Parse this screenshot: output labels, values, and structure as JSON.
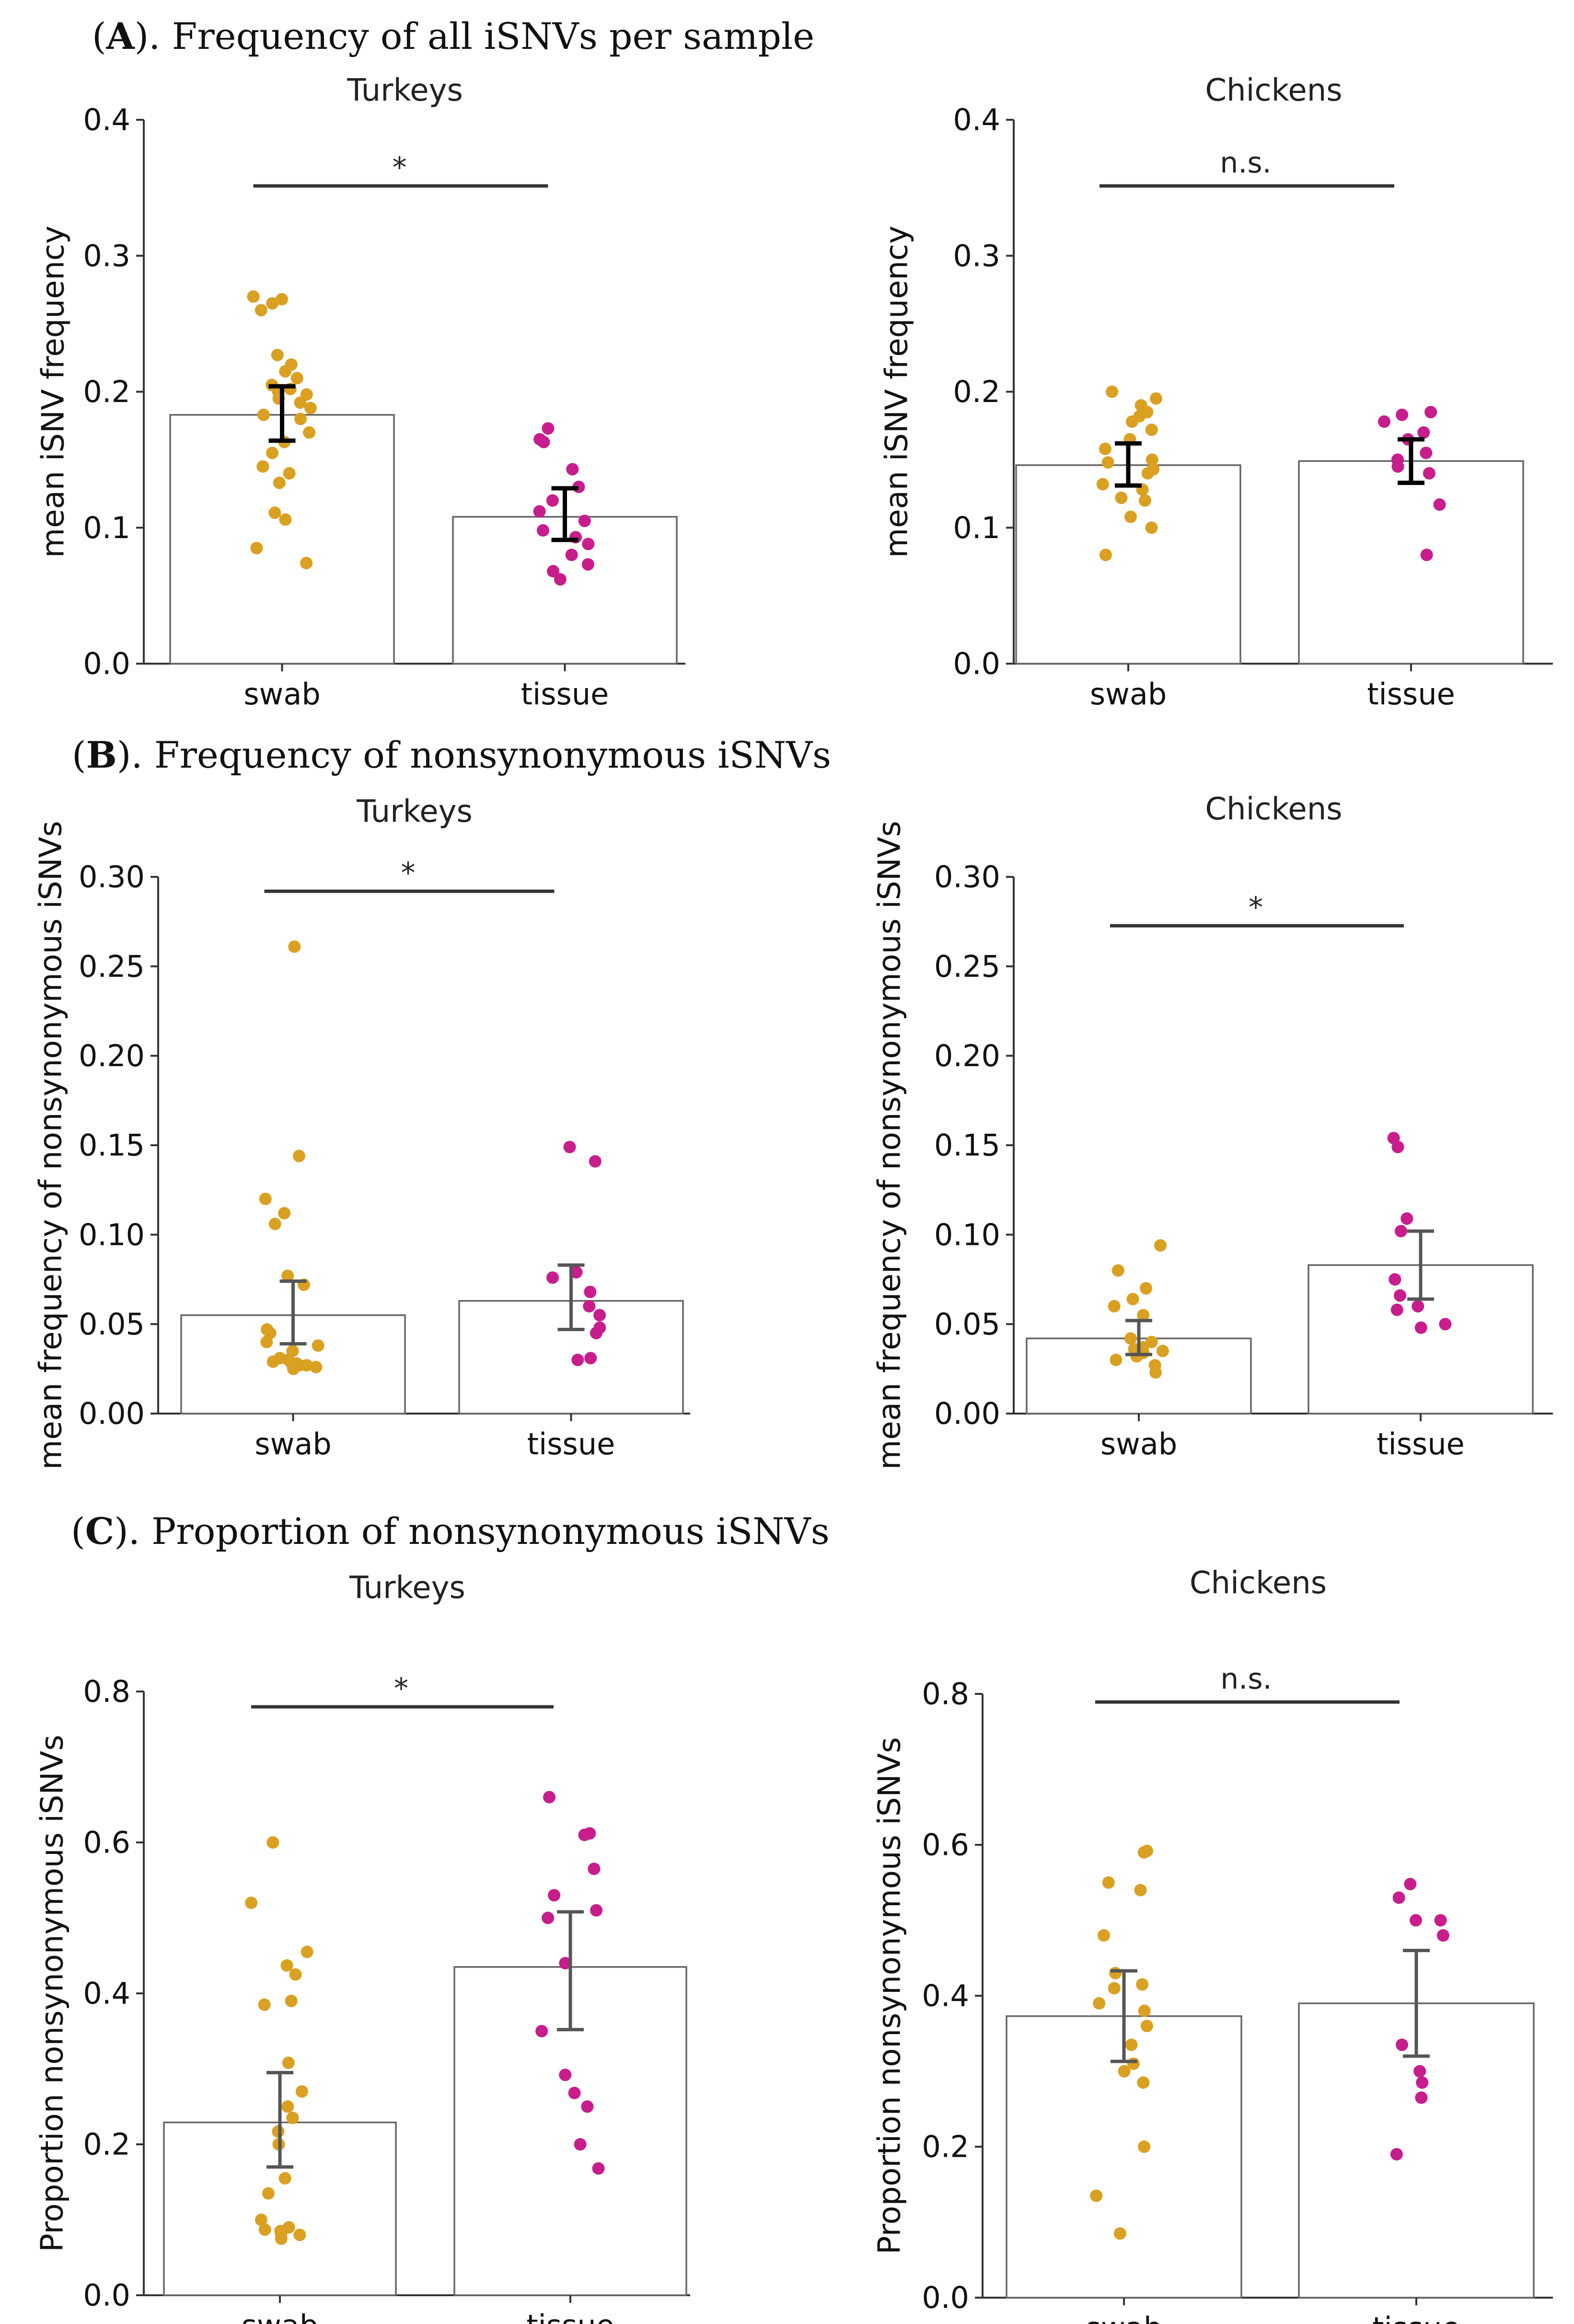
{
  "sections": [
    {
      "letter": "A",
      "rest": "). Frequency of all iSNVs per sample"
    },
    {
      "letter": "B",
      "rest": "). Frequency of nonsynonymous iSNVs"
    },
    {
      "letter": "C",
      "rest": "). Proportion of nonsynonymous iSNVs"
    }
  ],
  "colors": {
    "swab": "#DAA021",
    "tissue": "#C81D8C",
    "bar_edge": "#666666",
    "errbar_A": "#000000",
    "errbar_BC": "#555555"
  },
  "chart_data": [
    {
      "type": "bar",
      "section": "A",
      "title": "Turkeys",
      "ylabel": "mean iSNV frequency",
      "categories": [
        "swab",
        "tissue"
      ],
      "values": [
        0.183,
        0.108
      ],
      "errors": [
        [
          0.164,
          0.204
        ],
        [
          0.091,
          0.129
        ]
      ],
      "ylim": [
        0,
        0.4
      ],
      "yticks": [
        "0.0",
        "0.1",
        "0.2",
        "0.3",
        "0.4"
      ],
      "significance": "*",
      "points": {
        "swab": [
          0.074,
          0.085,
          0.106,
          0.111,
          0.133,
          0.14,
          0.145,
          0.155,
          0.163,
          0.17,
          0.18,
          0.183,
          0.188,
          0.192,
          0.195,
          0.198,
          0.2,
          0.202,
          0.205,
          0.21,
          0.215,
          0.22,
          0.227,
          0.26,
          0.265,
          0.268,
          0.27
        ],
        "tissue": [
          0.062,
          0.068,
          0.073,
          0.08,
          0.088,
          0.093,
          0.098,
          0.105,
          0.112,
          0.12,
          0.13,
          0.143,
          0.163,
          0.165,
          0.173
        ]
      }
    },
    {
      "type": "bar",
      "section": "A",
      "title": "Chickens",
      "ylabel": "mean iSNV frequency",
      "categories": [
        "swab",
        "tissue"
      ],
      "values": [
        0.146,
        0.149
      ],
      "errors": [
        [
          0.131,
          0.162
        ],
        [
          0.133,
          0.165
        ]
      ],
      "ylim": [
        0,
        0.4
      ],
      "yticks": [
        "0.0",
        "0.1",
        "0.2",
        "0.3",
        "0.4"
      ],
      "significance": "n.s.",
      "points": {
        "swab": [
          0.08,
          0.1,
          0.108,
          0.12,
          0.122,
          0.128,
          0.132,
          0.14,
          0.143,
          0.148,
          0.15,
          0.158,
          0.165,
          0.172,
          0.178,
          0.182,
          0.185,
          0.19,
          0.195,
          0.2
        ],
        "tissue": [
          0.08,
          0.117,
          0.14,
          0.145,
          0.15,
          0.155,
          0.165,
          0.17,
          0.178,
          0.183,
          0.185
        ]
      }
    },
    {
      "type": "bar",
      "section": "B",
      "title": "Turkeys",
      "ylabel": "mean frequency of nonsynonymous iSNVs",
      "categories": [
        "swab",
        "tissue"
      ],
      "values": [
        0.055,
        0.063
      ],
      "errors": [
        [
          0.039,
          0.074
        ],
        [
          0.047,
          0.083
        ]
      ],
      "ylim": [
        0,
        0.3
      ],
      "yticks": [
        "0.00",
        "0.05",
        "0.10",
        "0.15",
        "0.20",
        "0.25",
        "0.30"
      ],
      "significance": "*",
      "points": {
        "swab": [
          0.025,
          0.026,
          0.027,
          0.027,
          0.028,
          0.028,
          0.029,
          0.03,
          0.031,
          0.035,
          0.038,
          0.04,
          0.045,
          0.047,
          0.072,
          0.077,
          0.106,
          0.112,
          0.12,
          0.144,
          0.261
        ],
        "tissue": [
          0.03,
          0.031,
          0.045,
          0.048,
          0.055,
          0.06,
          0.068,
          0.076,
          0.079,
          0.141,
          0.149
        ]
      }
    },
    {
      "type": "bar",
      "section": "B",
      "title": "Chickens",
      "ylabel": "mean frequency of nonsynonymous iSNVs",
      "categories": [
        "swab",
        "tissue"
      ],
      "values": [
        0.042,
        0.083
      ],
      "errors": [
        [
          0.033,
          0.052
        ],
        [
          0.064,
          0.102
        ]
      ],
      "ylim": [
        0,
        0.3
      ],
      "yticks": [
        "0.00",
        "0.05",
        "0.10",
        "0.15",
        "0.20",
        "0.25",
        "0.30"
      ],
      "significance": "*",
      "points": {
        "swab": [
          0.023,
          0.027,
          0.03,
          0.032,
          0.034,
          0.035,
          0.036,
          0.037,
          0.04,
          0.042,
          0.055,
          0.06,
          0.064,
          0.07,
          0.08,
          0.094
        ],
        "tissue": [
          0.048,
          0.05,
          0.058,
          0.06,
          0.066,
          0.075,
          0.102,
          0.109,
          0.149,
          0.154
        ]
      }
    },
    {
      "type": "bar",
      "section": "C",
      "title": "Turkeys",
      "ylabel": "Proportion nonsynonymous iSNVs",
      "categories": [
        "swab",
        "tissue"
      ],
      "values": [
        0.229,
        0.435
      ],
      "errors": [
        [
          0.17,
          0.295
        ],
        [
          0.352,
          0.508
        ]
      ],
      "ylim": [
        0,
        0.8
      ],
      "yticks": [
        "0.0",
        "0.2",
        "0.4",
        "0.6",
        "0.8"
      ],
      "significance": "*",
      "points": {
        "swab": [
          0.075,
          0.08,
          0.082,
          0.085,
          0.087,
          0.09,
          0.1,
          0.135,
          0.155,
          0.2,
          0.217,
          0.235,
          0.25,
          0.27,
          0.308,
          0.385,
          0.39,
          0.425,
          0.437,
          0.455,
          0.52,
          0.6
        ],
        "tissue": [
          0.168,
          0.2,
          0.25,
          0.268,
          0.292,
          0.35,
          0.44,
          0.5,
          0.51,
          0.53,
          0.565,
          0.61,
          0.612,
          0.66
        ]
      }
    },
    {
      "type": "bar",
      "section": "C",
      "title": "Chickens",
      "ylabel": "Proportion nonsynonymous iSNVs",
      "categories": [
        "swab",
        "tissue"
      ],
      "values": [
        0.373,
        0.39
      ],
      "errors": [
        [
          0.313,
          0.433
        ],
        [
          0.32,
          0.46
        ]
      ],
      "ylim": [
        0,
        0.8
      ],
      "yticks": [
        "0.0",
        "0.2",
        "0.4",
        "0.6",
        "0.8"
      ],
      "significance": "n.s.",
      "points": {
        "swab": [
          0.085,
          0.135,
          0.2,
          0.285,
          0.3,
          0.31,
          0.335,
          0.36,
          0.38,
          0.39,
          0.41,
          0.415,
          0.43,
          0.48,
          0.54,
          0.55,
          0.59,
          0.592
        ],
        "tissue": [
          0.19,
          0.265,
          0.285,
          0.3,
          0.335,
          0.48,
          0.5,
          0.5,
          0.53,
          0.548
        ]
      }
    }
  ]
}
